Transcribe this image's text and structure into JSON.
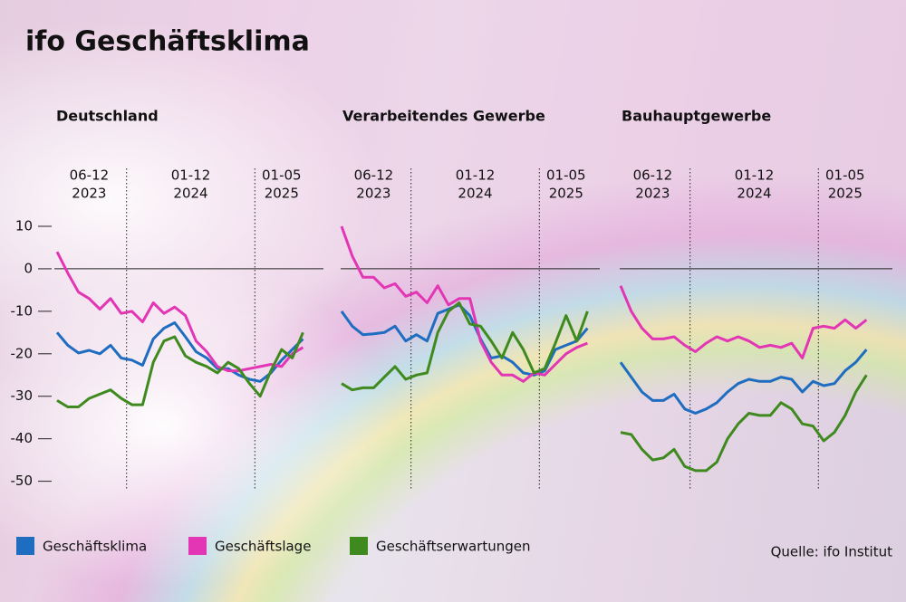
{
  "title": "ifo Geschäftsklima",
  "source": "Quelle: ifo Institut",
  "chart_data": [
    {
      "type": "line",
      "title": "Deutschland",
      "x": [
        "2023-06",
        "2023-07",
        "2023-08",
        "2023-09",
        "2023-10",
        "2023-11",
        "2023-12",
        "2024-01",
        "2024-02",
        "2024-03",
        "2024-04",
        "2024-05",
        "2024-06",
        "2024-07",
        "2024-08",
        "2024-09",
        "2024-10",
        "2024-11",
        "2024-12",
        "2025-01",
        "2025-02",
        "2025-03",
        "2025-04",
        "2025-05"
      ],
      "periods": [
        {
          "months": "06-12",
          "year": "2023"
        },
        {
          "months": "01-12",
          "year": "2024"
        },
        {
          "months": "01-05",
          "year": "2025"
        }
      ],
      "ylim": [
        -52,
        12
      ],
      "yticks": [
        10,
        0,
        -10,
        -20,
        -30,
        -40,
        -50
      ],
      "zero_line": true,
      "series": [
        {
          "name": "Geschäftsklima",
          "color": "#1f6dc0",
          "values": [
            -15,
            -18,
            -19.8,
            -19.2,
            -20,
            -18,
            -21,
            -21.5,
            -22.7,
            -16.5,
            -14,
            -12.7,
            -16,
            -19.5,
            -21,
            -23.5,
            -23.5,
            -25,
            -26,
            -26.5,
            -24.5,
            -21.5,
            -19,
            -16.5
          ]
        },
        {
          "name": "Geschäftslage",
          "color": "#e336b5",
          "values": [
            4,
            -1,
            -5.5,
            -7,
            -9.5,
            -7,
            -10.5,
            -10,
            -12.5,
            -8,
            -10.5,
            -9,
            -11,
            -17,
            -19.5,
            -23,
            -24,
            -24,
            -23.5,
            -23,
            -22.5,
            -23,
            -20,
            -18.5
          ]
        },
        {
          "name": "Geschäftserwartungen",
          "color": "#3f8a1e",
          "values": [
            -31,
            -32.5,
            -32.5,
            -30.5,
            -29.5,
            -28.5,
            -30.5,
            -32,
            -32,
            -22,
            -17,
            -16,
            -20.5,
            -22,
            -23,
            -24.5,
            -22,
            -23.5,
            -27,
            -30,
            -24,
            -19,
            -21,
            -15
          ]
        }
      ]
    },
    {
      "type": "line",
      "title": "Verarbeitendes Gewerbe",
      "x": [
        "2023-06",
        "2023-07",
        "2023-08",
        "2023-09",
        "2023-10",
        "2023-11",
        "2023-12",
        "2024-01",
        "2024-02",
        "2024-03",
        "2024-04",
        "2024-05",
        "2024-06",
        "2024-07",
        "2024-08",
        "2024-09",
        "2024-10",
        "2024-11",
        "2024-12",
        "2025-01",
        "2025-02",
        "2025-03",
        "2025-04",
        "2025-05"
      ],
      "periods": [
        {
          "months": "06-12",
          "year": "2023"
        },
        {
          "months": "01-12",
          "year": "2024"
        },
        {
          "months": "01-05",
          "year": "2025"
        }
      ],
      "ylim": [
        -52,
        12
      ],
      "zero_line": true,
      "series": [
        {
          "name": "Geschäftsklima",
          "color": "#1f6dc0",
          "values": [
            -10,
            -13.5,
            -15.5,
            -15.3,
            -15,
            -13.5,
            -17,
            -15.5,
            -17,
            -10.5,
            -9.5,
            -8.5,
            -11,
            -16.5,
            -21,
            -20.5,
            -22,
            -24.5,
            -25,
            -24,
            -19,
            -18,
            -17,
            -14
          ]
        },
        {
          "name": "Geschäftslage",
          "color": "#e336b5",
          "values": [
            10,
            3,
            -2,
            -2,
            -4.5,
            -3.5,
            -6.5,
            -5.5,
            -8,
            -4,
            -8.5,
            -7,
            -7,
            -17,
            -22,
            -25,
            -25,
            -26.5,
            -24.5,
            -25,
            -22.5,
            -20,
            -18.5,
            -17.5
          ]
        },
        {
          "name": "Geschäftserwartungen",
          "color": "#3f8a1e",
          "values": [
            -27,
            -28.5,
            -28,
            -28,
            -25.5,
            -23,
            -26,
            -25,
            -24.5,
            -15,
            -10,
            -8,
            -13,
            -13.5,
            -17,
            -21,
            -15,
            -19,
            -24.5,
            -23.5,
            -17.5,
            -11,
            -17,
            -10
          ]
        }
      ]
    },
    {
      "type": "line",
      "title": "Bauhauptgewerbe",
      "x": [
        "2023-06",
        "2023-07",
        "2023-08",
        "2023-09",
        "2023-10",
        "2023-11",
        "2023-12",
        "2024-01",
        "2024-02",
        "2024-03",
        "2024-04",
        "2024-05",
        "2024-06",
        "2024-07",
        "2024-08",
        "2024-09",
        "2024-10",
        "2024-11",
        "2024-12",
        "2025-01",
        "2025-02",
        "2025-03",
        "2025-04",
        "2025-05"
      ],
      "periods": [
        {
          "months": "06-12",
          "year": "2023"
        },
        {
          "months": "01-12",
          "year": "2024"
        },
        {
          "months": "01-05",
          "year": "2025"
        }
      ],
      "ylim": [
        -52,
        12
      ],
      "zero_line": true,
      "series": [
        {
          "name": "Geschäftsklima",
          "color": "#1f6dc0",
          "values": [
            -22,
            -25.5,
            -29,
            -31,
            -31,
            -29.5,
            -33,
            -34,
            -33,
            -31.5,
            -29,
            -27,
            -26,
            -26.5,
            -26.5,
            -25.5,
            -26,
            -29,
            -26.5,
            -27.5,
            -27,
            -24,
            -22,
            -19
          ]
        },
        {
          "name": "Geschäftslage",
          "color": "#e336b5",
          "values": [
            -4,
            -10,
            -14,
            -16.5,
            -16.5,
            -16,
            -18,
            -19.5,
            -17.5,
            -16,
            -17,
            -16,
            -17,
            -18.5,
            -18,
            -18.5,
            -17.5,
            -21,
            -14,
            -13.5,
            -14,
            -12,
            -14,
            -12
          ]
        },
        {
          "name": "Geschäftserwartungen",
          "color": "#3f8a1e",
          "values": [
            -38.5,
            -39,
            -42.5,
            -45,
            -44.5,
            -42.5,
            -46.5,
            -47.5,
            -47.5,
            -45.5,
            -40,
            -36.5,
            -34,
            -34.5,
            -34.5,
            -31.5,
            -33,
            -36.5,
            -37,
            -40.5,
            -38.5,
            -34.5,
            -29,
            -25
          ]
        }
      ]
    }
  ]
}
